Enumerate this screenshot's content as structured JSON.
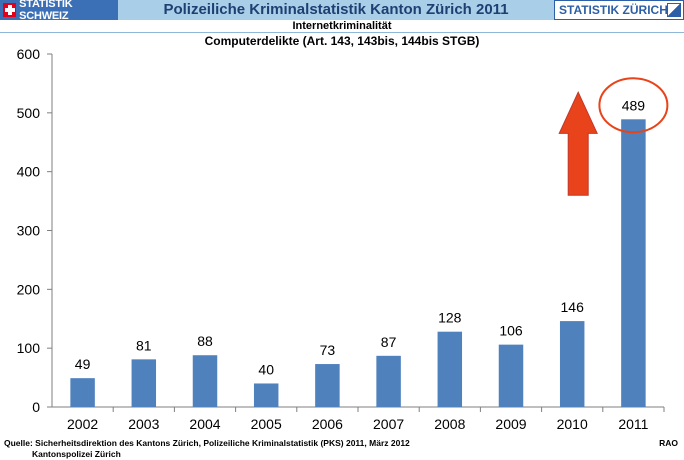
{
  "header": {
    "left_logo": "STATISTIK SCHWEIZ",
    "title": "Polizeiliche Kriminalstatistik Kanton Zürich 2011",
    "right_logo": "STATISTIK ZÜRICH"
  },
  "subtitle": "Internetkriminalität",
  "chart_title": "Computerdelikte (Art. 143, 143bis, 144bis STGB)",
  "chart_data": {
    "type": "bar",
    "title": "Computerdelikte (Art. 143, 143bis, 144bis STGB)",
    "categories": [
      "2002",
      "2003",
      "2004",
      "2005",
      "2006",
      "2007",
      "2008",
      "2009",
      "2010",
      "2011"
    ],
    "values": [
      49,
      81,
      88,
      40,
      73,
      87,
      128,
      106,
      146,
      489
    ],
    "ylim": [
      0,
      600
    ],
    "yticks": [
      0,
      100,
      200,
      300,
      400,
      500,
      600
    ],
    "xlabel": "",
    "ylabel": "",
    "grid": false,
    "bar_color": "#4f81bd",
    "annotations": {
      "arrow": "up-arrow",
      "arrow_color": "#e8431a",
      "highlight": "circle around 2011 value",
      "highlight_color": "#e8431a"
    }
  },
  "footer": {
    "source": "Quelle: Sicherheitsdirektion des Kantons Zürich, Polizeiliche Kriminalstatistik (PKS) 2011, März 2012",
    "agency": "Kantonspolizei  Zürich",
    "code": "RAO"
  }
}
